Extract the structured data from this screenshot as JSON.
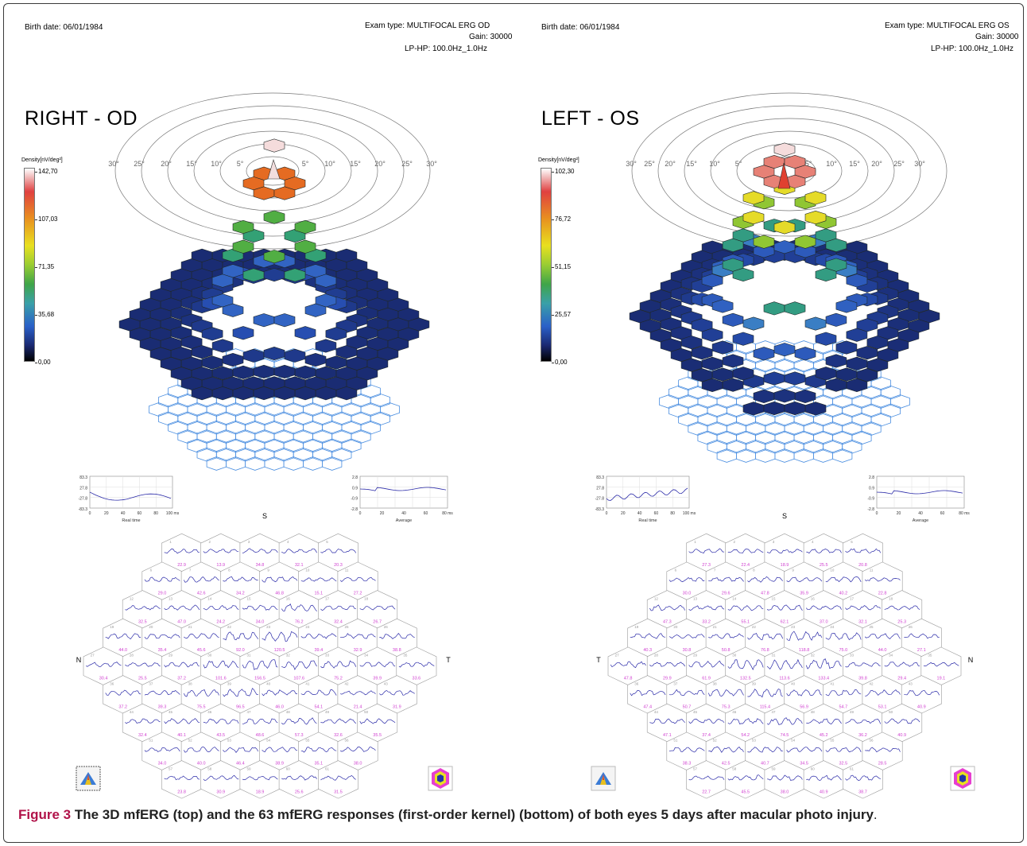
{
  "caption": {
    "label": "Figure 3",
    "text": "The 3D mfERG (top) and the 63 mfERG responses (first-order kernel) (bottom) of both eyes 5 days after macular photo injury",
    "end": "."
  },
  "panels": [
    {
      "id": "od",
      "birth_date": "Birth date: 06/01/1984",
      "exam_type": "Exam type: MULTIFOCAL ERG OD",
      "gain": "Gain: 30000",
      "filter": "LP-HP: 100.0Hz_1.0Hz",
      "eye_title": "RIGHT - OD",
      "scale_title": "Density[nV/deg²]",
      "scale_ticks": [
        "142,70",
        "107,03",
        "71,35",
        "35,68",
        "0,00"
      ],
      "ring_labels": [
        "30°",
        "25°",
        "20°",
        "15°",
        "10°",
        "5°",
        "5°",
        "10°",
        "15°",
        "20°",
        "25°",
        "30°"
      ],
      "small_plot_left": {
        "ticks_y": [
          "83.3",
          "27.8",
          "-27.8",
          "-83.3"
        ],
        "ticks_x": [
          "0",
          "20",
          "40",
          "60",
          "80",
          "100 ms"
        ],
        "label": "Real time"
      },
      "small_plot_right": {
        "ticks_y": [
          "2.8",
          "0.9",
          "-0.9",
          "-2.8"
        ],
        "ticks_x": [
          "0",
          "20",
          "40",
          "60",
          "80 ms"
        ],
        "label": "Average"
      },
      "dir_top": "S",
      "dir_left": "N",
      "dir_right": "T",
      "trace_colors": {
        "trace": "#2a2aa8",
        "ecc": "#2e9b2e",
        "amp": "#d040d0",
        "idx": "#999999"
      }
    },
    {
      "id": "os",
      "birth_date": "Birth date: 06/01/1984",
      "exam_type": "Exam type: MULTIFOCAL ERG OS",
      "gain": "Gain: 30000",
      "filter": "LP-HP: 100.0Hz_1.0Hz",
      "eye_title": "LEFT - OS",
      "scale_title": "Density[nV/deg²]",
      "scale_ticks": [
        "102,30",
        "76,72",
        "51,15",
        "25,57",
        "0,00"
      ],
      "ring_labels": [
        "30°",
        "25°",
        "20°",
        "15°",
        "10°",
        "5°",
        "5°",
        "10°",
        "15°",
        "20°",
        "25°",
        "30°"
      ],
      "small_plot_left": {
        "ticks_y": [
          "83.3",
          "27.8",
          "-27.8",
          "-83.3"
        ],
        "ticks_x": [
          "0",
          "20",
          "40",
          "60",
          "80",
          "100 ms"
        ],
        "label": "Real time"
      },
      "small_plot_right": {
        "ticks_y": [
          "2.8",
          "0.9",
          "-0.9",
          "-2.8"
        ],
        "ticks_x": [
          "0",
          "20",
          "40",
          "60",
          "80 ms"
        ],
        "label": "Average"
      },
      "dir_top": "S",
      "dir_left": "T",
      "dir_right": "N"
    }
  ],
  "hex_grid": {
    "rows": [
      5,
      6,
      7,
      8,
      9,
      8,
      7,
      6,
      5
    ],
    "od_amplitudes": [
      [
        "22.9",
        "13.9",
        "34.8",
        "32.1",
        "20.3"
      ],
      [
        "29.0",
        "42.6",
        "34.2",
        "46.8",
        "15.1",
        "27.2"
      ],
      [
        "32.5",
        "47.0",
        "24.2",
        "34.0",
        "76.2",
        "32.4",
        "26.7"
      ],
      [
        "44.0",
        "35.4",
        "45.6",
        "92.0",
        "120.5",
        "39.4",
        "32.9",
        "38.8"
      ],
      [
        "30.4",
        "25.5",
        "37.2",
        "101.6",
        "156.5",
        "107.6",
        "75.2",
        "39.9",
        "33.6"
      ],
      [
        "37.2",
        "39.3",
        "75.5",
        "96.5",
        "46.0",
        "54.1",
        "21.4",
        "31.9"
      ],
      [
        "32.4",
        "40.1",
        "43.5",
        "48.6",
        "57.3",
        "32.6",
        "35.5"
      ],
      [
        "34.0",
        "40.0",
        "46.4",
        "38.9",
        "35.1",
        "38.0"
      ],
      [
        "23.8",
        "30.9",
        "18.9",
        "25.6",
        "31.5"
      ]
    ],
    "os_amplitudes": [
      [
        "27.3",
        "22.4",
        "18.9",
        "25.5",
        "20.8"
      ],
      [
        "30.0",
        "29.6",
        "47.8",
        "35.9",
        "40.2",
        "22.8"
      ],
      [
        "47.3",
        "33.2",
        "55.1",
        "62.1",
        "37.0",
        "32.1",
        "25.3"
      ],
      [
        "40.3",
        "30.8",
        "50.8",
        "76.8",
        "118.8",
        "75.0",
        "44.0",
        "27.1"
      ],
      [
        "47.8",
        "29.9",
        "61.9",
        "132.5",
        "113.6",
        "133.4",
        "39.8",
        "29.4",
        "19.1"
      ],
      [
        "47.4",
        "50.7",
        "75.3",
        "115.4",
        "56.9",
        "54.7",
        "53.1",
        "40.9"
      ],
      [
        "47.1",
        "37.4",
        "54.2",
        "74.5",
        "45.2",
        "36.2",
        "40.9"
      ],
      [
        "38.3",
        "42.5",
        "40.7",
        "34.5",
        "32.5",
        "28.5"
      ],
      [
        "22.7",
        "45.5",
        "38.0",
        "40.9",
        "38.7"
      ]
    ]
  }
}
